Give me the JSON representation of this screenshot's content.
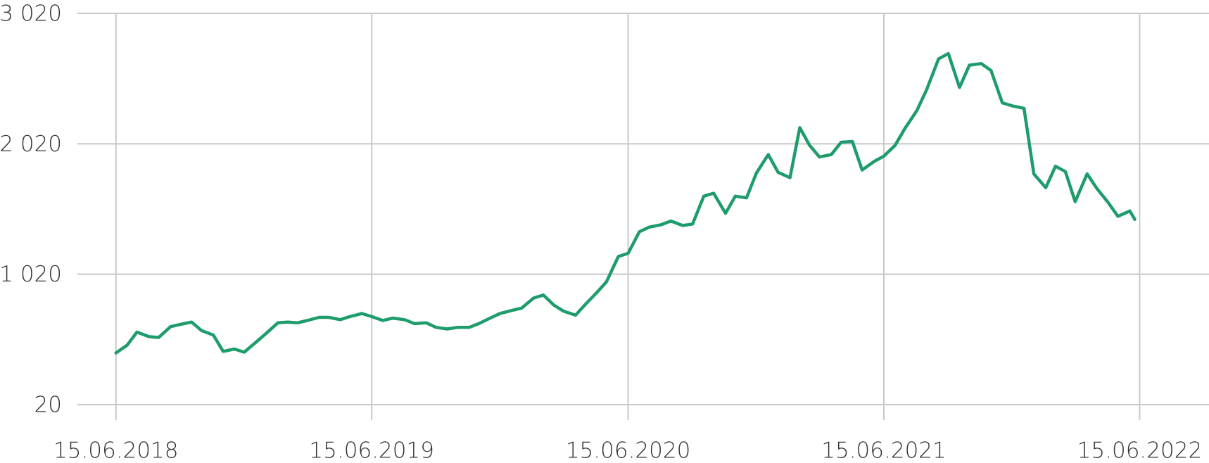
{
  "chart_data": {
    "type": "line",
    "x": [
      "15.06.2018",
      "01.07.2018",
      "15.07.2018",
      "01.08.2018",
      "15.08.2018",
      "01.09.2018",
      "15.09.2018",
      "01.10.2018",
      "15.10.2018",
      "01.11.2018",
      "15.11.2018",
      "01.12.2018",
      "15.12.2018",
      "01.01.2019",
      "15.01.2019",
      "01.02.2019",
      "15.02.2019",
      "01.03.2019",
      "15.03.2019",
      "01.04.2019",
      "15.04.2019",
      "01.05.2019",
      "15.05.2019",
      "01.06.2019",
      "15.06.2019",
      "01.07.2019",
      "15.07.2019",
      "01.08.2019",
      "15.08.2019",
      "01.09.2019",
      "15.09.2019",
      "01.10.2019",
      "15.10.2019",
      "01.11.2019",
      "15.11.2019",
      "01.12.2019",
      "15.12.2019",
      "01.01.2020",
      "15.01.2020",
      "01.02.2020",
      "15.02.2020",
      "01.03.2020",
      "15.03.2020",
      "01.04.2020",
      "15.04.2020",
      "01.05.2020",
      "15.05.2020",
      "01.06.2020",
      "15.06.2020",
      "01.07.2020",
      "15.07.2020",
      "01.08.2020",
      "15.08.2020",
      "01.09.2020",
      "15.09.2020",
      "01.10.2020",
      "15.10.2020",
      "01.11.2020",
      "15.11.2020",
      "01.12.2020",
      "15.12.2020",
      "01.01.2021",
      "15.01.2021",
      "01.02.2021",
      "15.02.2021",
      "01.03.2021",
      "15.03.2021",
      "01.04.2021",
      "15.04.2021",
      "01.05.2021",
      "15.05.2021",
      "01.06.2021",
      "15.06.2021",
      "01.07.2021",
      "15.07.2021",
      "01.08.2021",
      "15.08.2021",
      "01.09.2021",
      "15.09.2021",
      "01.10.2021",
      "15.10.2021",
      "01.11.2021",
      "15.11.2021",
      "01.12.2021",
      "15.12.2021",
      "01.01.2022",
      "15.01.2022",
      "01.02.2022",
      "15.02.2022",
      "01.03.2022",
      "15.03.2022",
      "01.04.2022",
      "15.04.2022",
      "01.05.2022",
      "15.05.2022",
      "01.06.2022",
      "08.06.2022"
    ],
    "series": [
      {
        "color": "#1f9c6b",
        "values": [
          416,
          476,
          576,
          541,
          535,
          618,
          635,
          653,
          588,
          553,
          428,
          446,
          422,
          499,
          564,
          647,
          653,
          647,
          665,
          689,
          689,
          671,
          695,
          718,
          695,
          665,
          683,
          671,
          641,
          647,
          612,
          600,
          612,
          612,
          641,
          683,
          718,
          742,
          760,
          837,
          860,
          783,
          736,
          706,
          789,
          878,
          961,
          1156,
          1180,
          1345,
          1381,
          1399,
          1428,
          1393,
          1405,
          1618,
          1641,
          1487,
          1618,
          1606,
          1795,
          1937,
          1801,
          1760,
          2144,
          2008,
          1919,
          1937,
          2032,
          2038,
          1819,
          1884,
          1925,
          2008,
          2138,
          2274,
          2434,
          2671,
          2712,
          2452,
          2623,
          2635,
          2582,
          2334,
          2311,
          2292,
          1789,
          1683,
          1848,
          1807,
          1576,
          1789,
          1677,
          1570,
          1464,
          1505,
          1440
        ]
      }
    ],
    "xlim": [
      "21.04.2018",
      "22.09.2022"
    ],
    "xticks": [
      "15.06.2018",
      "15.06.2019",
      "15.06.2020",
      "15.06.2021",
      "15.06.2022"
    ],
    "ylim": [
      20,
      3020
    ],
    "yticks": [
      20,
      {
        "value": 1020,
        "label": "1 020"
      },
      {
        "value": 2020,
        "label": "2 020"
      },
      {
        "value": 3020,
        "label": "3 020"
      }
    ],
    "grid": true
  }
}
